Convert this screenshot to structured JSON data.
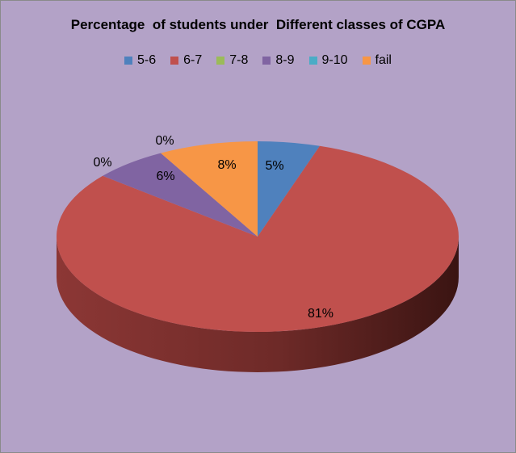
{
  "chart_data": {
    "type": "pie",
    "title": "Percentage  of students under  Different classes of CGPA",
    "categories": [
      "5-6",
      "6-7",
      "7-8",
      "8-9",
      "9-10",
      "fail"
    ],
    "values": [
      5,
      81,
      0,
      6,
      0,
      8
    ],
    "data_labels": [
      "5%",
      "81%",
      "0%",
      "6%",
      "0%",
      "8%"
    ],
    "colors": [
      "#4f81bd",
      "#c0504d",
      "#9bbb59",
      "#8064a2",
      "#4bacc6",
      "#f79646"
    ],
    "legend_position": "top",
    "three_d": true
  }
}
